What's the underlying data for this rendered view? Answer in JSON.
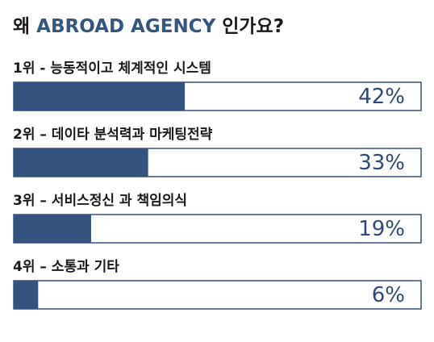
{
  "chart_data": {
    "type": "bar",
    "orientation": "horizontal",
    "title_parts": [
      {
        "text": "왜 ",
        "color": "#1a1a1a"
      },
      {
        "text": "ABROAD AGENCY",
        "color": "#34567f"
      },
      {
        "text": " 인가요?",
        "color": "#1a1a1a"
      }
    ],
    "categories": [
      "1위  -  능동적이고 체계적인 시스템",
      "2위 – 데이타 분석력과 마케팅전략",
      "3위 – 서비스정신 과 책임의식",
      "4위 – 소통과 기타"
    ],
    "values": [
      42,
      33,
      19,
      6
    ],
    "value_labels": [
      "42%",
      "33%",
      "19%",
      "6%"
    ],
    "color": "#34547f",
    "xlim": [
      0,
      100
    ]
  }
}
